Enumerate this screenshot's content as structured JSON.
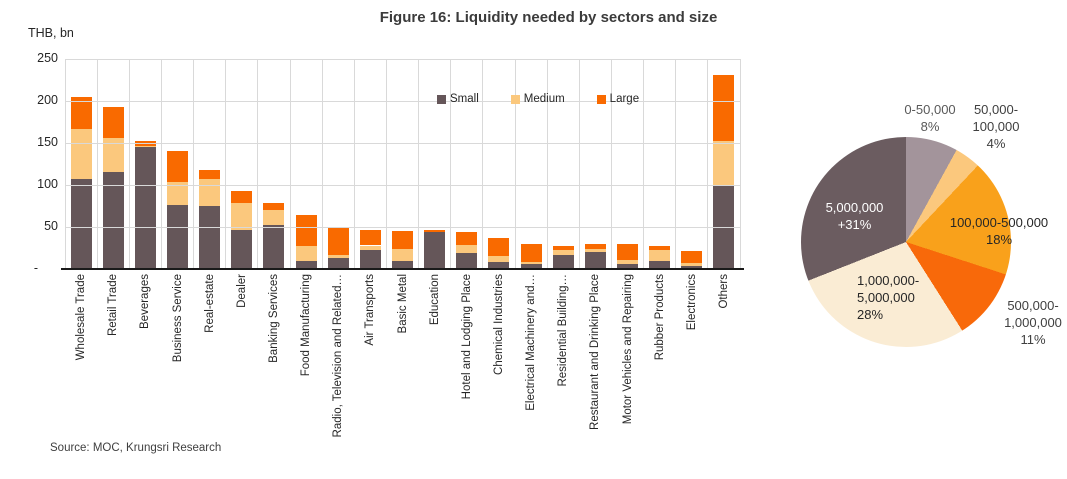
{
  "title": "Figure 16: Liquidity needed by sectors and size",
  "axis_unit": "THB, bn",
  "source": "Source: MOC, Krungsri Research",
  "colors": {
    "small": "#655659",
    "medium": "#fbc87d",
    "large": "#f96a00",
    "gridline": "#d9d9d9"
  },
  "chart_data": [
    {
      "type": "bar",
      "stacked": true,
      "ylabel": "THB, bn",
      "ylim": [
        0,
        250
      ],
      "yticks": [
        "250",
        "200",
        "150",
        "100",
        "50",
        "-"
      ],
      "grid": true,
      "legend_position": "inside-top",
      "categories": [
        "Wholesale Trade",
        "Retail Trade",
        "Beverages",
        "Business Service",
        "Real-estate",
        "Dealer",
        "Banking Services",
        "Food Manufacturing",
        "Radio, Television and Related…",
        "Air Transports",
        "Basic Metal",
        "Education",
        "Hotel and Lodging Place",
        "Chemical Industries",
        "Electrical Machinery and…",
        "Residential Building…",
        "Restaurant and Drinking Place",
        "Motor Vehicles and Repairing",
        "Rubber Products",
        "Electronics",
        "Others"
      ],
      "series": [
        {
          "name": "Small",
          "color": "#655659",
          "values": [
            107,
            116,
            146,
            76,
            75,
            47,
            52,
            10,
            13,
            23,
            10,
            44,
            19,
            8,
            6,
            17,
            20,
            6,
            9,
            4,
            100
          ]
        },
        {
          "name": "Medium",
          "color": "#fbc87d",
          "values": [
            60,
            40,
            1,
            28,
            32,
            32,
            18,
            17,
            4,
            5,
            14,
            0,
            10,
            8,
            2,
            6,
            4,
            5,
            14,
            3,
            52
          ]
        },
        {
          "name": "Large",
          "color": "#f96a00",
          "values": [
            38,
            37,
            6,
            36,
            11,
            14,
            8,
            37,
            33,
            19,
            21,
            2,
            15,
            21,
            22,
            5,
            6,
            19,
            4,
            14,
            79
          ]
        }
      ]
    },
    {
      "type": "pie",
      "direction": "clockwise",
      "start_angle_deg": 0,
      "slices": [
        {
          "label": "0-50,000",
          "pct_label": "8%",
          "value": 8,
          "color": "#a3949b",
          "label_position": "outside"
        },
        {
          "label": "50,000-100,000",
          "pct_label": "4%",
          "value": 4,
          "color": "#fbc87d",
          "label_position": "outside"
        },
        {
          "label": "100,000-500,000",
          "pct_label": "18%",
          "value": 18,
          "color": "#f9a11b",
          "label_position": "inside"
        },
        {
          "label": "500,000-1,000,000",
          "pct_label": "11%",
          "value": 11,
          "color": "#f8690a",
          "label_position": "outside"
        },
        {
          "label": "1,000,000-5,000,000",
          "pct_label": "28%",
          "value": 28,
          "color": "#faecd4",
          "label_position": "inside"
        },
        {
          "label": "5,000,000",
          "pct_label": "+31%",
          "value": 31,
          "color": "#6b5c60",
          "label_position": "inside"
        }
      ]
    }
  ]
}
